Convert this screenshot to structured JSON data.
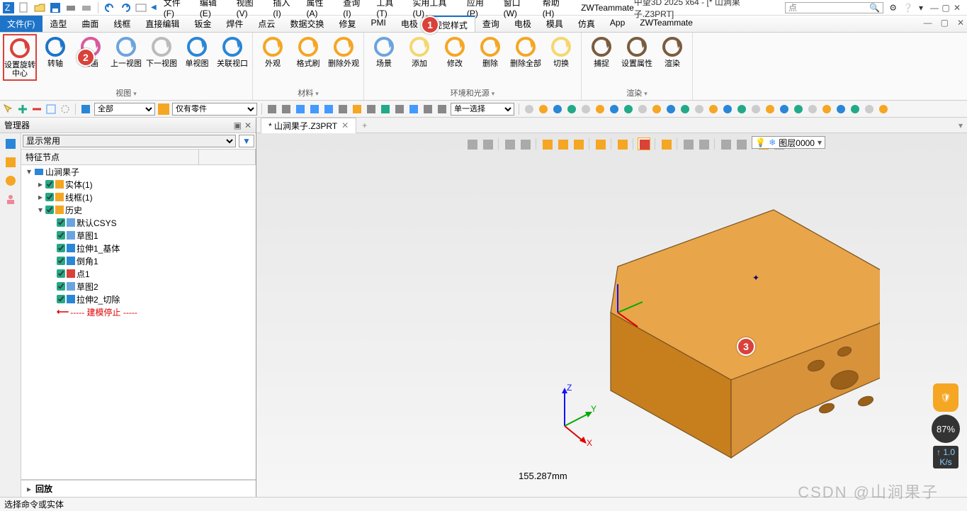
{
  "app": {
    "title": "中望3D 2025 x64 - [* 山涧果子.Z3PRT]",
    "brand": "ZWTeammate"
  },
  "search": {
    "placeholder": "点"
  },
  "menus": [
    "文件(F)",
    "编辑(E)",
    "视图(V)",
    "插入(I)",
    "属性(A)",
    "查询(I)",
    "工具(T)",
    "实用工具(U)",
    "应用(P)",
    "窗口(W)",
    "帮助(H)"
  ],
  "ribbon_tabs": [
    "文件(F)",
    "造型",
    "曲面",
    "线框",
    "直接编辑",
    "钣金",
    "焊件",
    "点云",
    "数据交换",
    "修复",
    "PMI",
    "电极",
    "视觉样式",
    "查询",
    "电极",
    "模具",
    "仿真",
    "App",
    "ZWTeammate"
  ],
  "active_tab_index": 12,
  "callouts": {
    "c1": "1",
    "c2": "2",
    "c3": "3"
  },
  "ribbon": {
    "groups": [
      {
        "label": "视图",
        "buttons": [
          {
            "name": "set-rotate-center",
            "label": "设置旋转中心",
            "color": "#d9413b",
            "highlight": true
          },
          {
            "name": "rotate-axis",
            "label": "转轴",
            "color": "#1e74c8"
          },
          {
            "name": "redraw",
            "label": "重画",
            "color": "#d959a0"
          },
          {
            "name": "prev-view",
            "label": "上一视图",
            "color": "#6aa4e0"
          },
          {
            "name": "next-view",
            "label": "下一视图",
            "color": "#bbbbbb"
          },
          {
            "name": "single-view",
            "label": "单视图",
            "color": "#2a86d6"
          },
          {
            "name": "link-viewport",
            "label": "关联视口",
            "color": "#2a86d6"
          }
        ]
      },
      {
        "label": "材料",
        "buttons": [
          {
            "name": "appearance",
            "label": "外观",
            "color": "#f5a623"
          },
          {
            "name": "format-painter",
            "label": "格式刷",
            "color": "#f5a623"
          },
          {
            "name": "delete-appearance",
            "label": "删除外观",
            "color": "#f5a623"
          }
        ]
      },
      {
        "label": "环境和光源",
        "buttons": [
          {
            "name": "scene",
            "label": "场景",
            "color": "#6aa4e0"
          },
          {
            "name": "add-light",
            "label": "添加",
            "color": "#f5d76e"
          },
          {
            "name": "modify-light",
            "label": "修改",
            "color": "#f5a623"
          },
          {
            "name": "delete-light",
            "label": "删除",
            "color": "#f5a623"
          },
          {
            "name": "delete-all-light",
            "label": "删除全部",
            "color": "#f5a623"
          },
          {
            "name": "toggle-light",
            "label": "切换",
            "color": "#f5d76e"
          }
        ]
      },
      {
        "label": "渲染",
        "buttons": [
          {
            "name": "capture",
            "label": "捕捉",
            "color": "#7a5c3e"
          },
          {
            "name": "set-props",
            "label": "设置属性",
            "color": "#7a5c3e"
          },
          {
            "name": "render",
            "label": "渲染",
            "color": "#7a5c3e"
          }
        ]
      }
    ]
  },
  "selectors": {
    "all": "全部",
    "only_parts": "仅有零件",
    "single_select": "单一选择",
    "display_common": "显示常用"
  },
  "manager": {
    "title": "管理器",
    "header": "特征节点",
    "root": "山涧果子",
    "nodes": [
      {
        "indent": 1,
        "tw": "▸",
        "chk": true,
        "icon": "#f5a623",
        "label": "实体(1)"
      },
      {
        "indent": 1,
        "tw": "▸",
        "chk": true,
        "icon": "#f5a623",
        "label": "线框(1)"
      },
      {
        "indent": 1,
        "tw": "▾",
        "chk": true,
        "icon": "#f5a623",
        "label": "历史"
      },
      {
        "indent": 2,
        "tw": "",
        "chk": true,
        "icon": "#6aa4e0",
        "label": "默认CSYS"
      },
      {
        "indent": 2,
        "tw": "",
        "chk": true,
        "icon": "#6aa4e0",
        "label": "草图1"
      },
      {
        "indent": 2,
        "tw": "",
        "chk": true,
        "icon": "#2a86d6",
        "label": "拉伸1_基体"
      },
      {
        "indent": 2,
        "tw": "",
        "chk": true,
        "icon": "#2a86d6",
        "label": "倒角1"
      },
      {
        "indent": 2,
        "tw": "",
        "chk": true,
        "icon": "#d9413b",
        "label": "点1"
      },
      {
        "indent": 2,
        "tw": "",
        "chk": true,
        "icon": "#6aa4e0",
        "label": "草图2"
      },
      {
        "indent": 2,
        "tw": "",
        "chk": true,
        "icon": "#2a86d6",
        "label": "拉伸2_切除"
      },
      {
        "indent": 2,
        "tw": "",
        "chk": false,
        "icon": "",
        "label": "----- 建模停止 -----",
        "red": true,
        "arrow": true
      }
    ],
    "replay": "回放"
  },
  "doc": {
    "tab": "* 山涧果子.Z3PRT",
    "dim": "155.287mm"
  },
  "layer": {
    "label": "图层0000"
  },
  "status": {
    "text": "选择命令或实体"
  },
  "axes": {
    "x": "X",
    "y": "Y",
    "z": "Z"
  },
  "model": {
    "fill_top": "#e8a54a",
    "fill_left": "#c77f1e",
    "fill_right": "#d8923a",
    "stroke": "#7a5320",
    "hole": "#9a5f18"
  },
  "badge": {
    "pct": "87%",
    "spd_top": "↑ 1.0",
    "spd_bot": "K/s"
  },
  "watermark": "CSDN @山涧果子"
}
